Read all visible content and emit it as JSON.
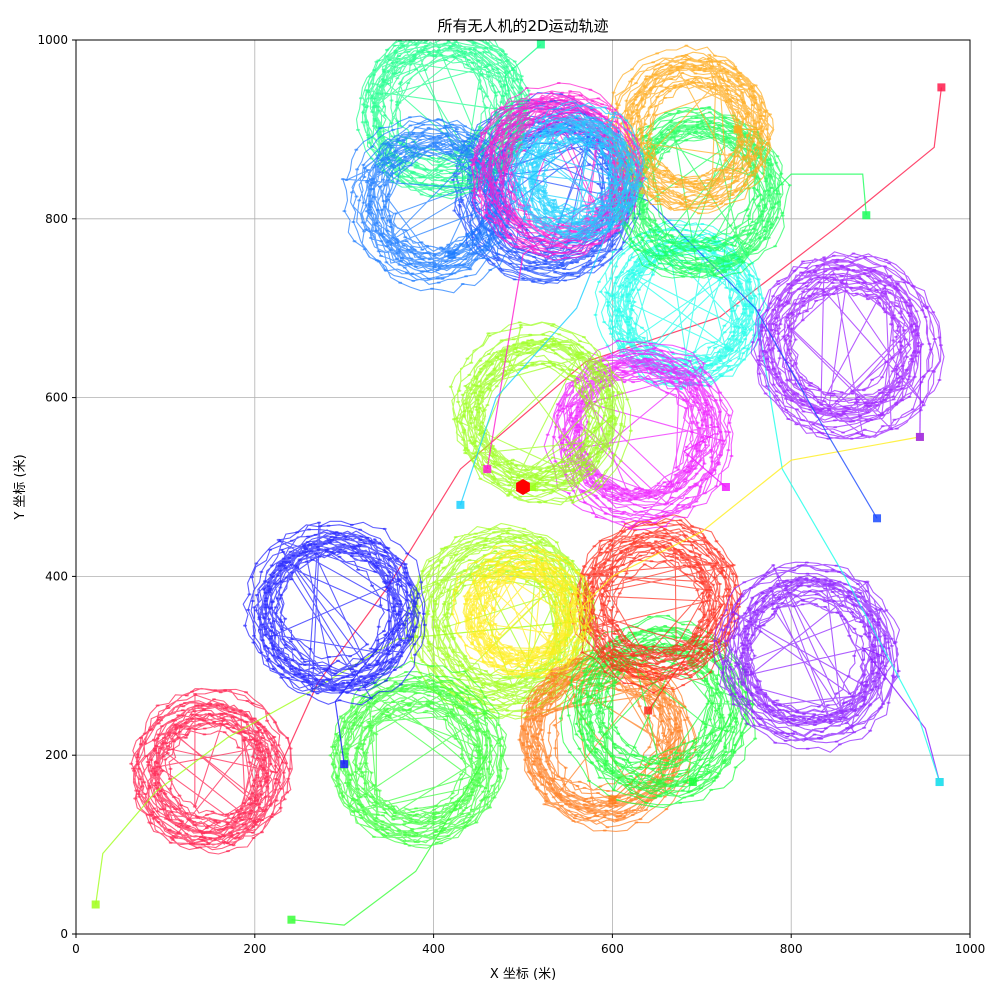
{
  "chart_data": {
    "type": "line",
    "title": "所有无人机的2D运动轨迹",
    "xlabel": "X 坐标 (米)",
    "ylabel": "Y 坐标 (米)",
    "xlim": [
      0,
      1000
    ],
    "ylim": [
      0,
      1000
    ],
    "xticks": [
      0,
      200,
      400,
      600,
      800,
      1000
    ],
    "yticks": [
      0,
      200,
      400,
      600,
      800,
      1000
    ],
    "grid": true,
    "legend": "none",
    "markers": "small dots on each trajectory; squares at start positions",
    "series": [
      {
        "color": "#ff1a4a",
        "start": [
          968,
          947
        ],
        "transit": [
          [
            960,
            880
          ],
          [
            850,
            790
          ],
          [
            720,
            690
          ],
          [
            570,
            640
          ],
          [
            430,
            520
          ],
          [
            350,
            390
          ],
          [
            270,
            280
          ]
        ],
        "center": [
          150,
          180
        ],
        "radius": 75
      },
      {
        "color": "#a0ff1a",
        "start": [
          22,
          33
        ],
        "transit": [
          [
            30,
            90
          ],
          [
            90,
            160
          ],
          [
            170,
            220
          ],
          [
            260,
            270
          ],
          [
            360,
            330
          ]
        ],
        "center": [
          480,
          350
        ],
        "radius": 85
      },
      {
        "color": "#38ff38",
        "start": [
          241,
          16
        ],
        "transit": [
          [
            300,
            10
          ],
          [
            380,
            70
          ]
        ],
        "center": [
          380,
          200
        ],
        "radius": 80
      },
      {
        "color": "#1a1aff",
        "start": [
          300,
          190
        ],
        "transit": [
          [
            290,
            260
          ]
        ],
        "center": [
          290,
          360
        ],
        "radius": 80
      },
      {
        "color": "#ff7a1a",
        "start": [
          600,
          150
        ],
        "transit": [],
        "center": [
          590,
          220
        ],
        "radius": 85
      },
      {
        "color": "#1aff3a",
        "start": [
          690,
          170
        ],
        "transit": [],
        "center": [
          650,
          250
        ],
        "radius": 85
      },
      {
        "color": "#ff2a1a",
        "start": [
          640,
          250
        ],
        "transit": [],
        "center": [
          650,
          370
        ],
        "radius": 75
      },
      {
        "color": "#8a1aff",
        "start": [
          966,
          170
        ],
        "transit": [
          [
            950,
            230
          ],
          [
            880,
            320
          ]
        ],
        "center": [
          820,
          310
        ],
        "radius": 85
      },
      {
        "color": "#1affea",
        "start": [
          966,
          170
        ],
        "transit": [
          [
            940,
            250
          ],
          [
            860,
            400
          ],
          [
            790,
            520
          ]
        ],
        "center": [
          680,
          700
        ],
        "radius": 80
      },
      {
        "color": "#ffee1a",
        "start": [
          944,
          556
        ],
        "transit": [
          [
            800,
            530
          ],
          [
            700,
            450
          ],
          [
            600,
            400
          ]
        ],
        "center": [
          500,
          360
        ],
        "radius": 60
      },
      {
        "color": "#9a1aff",
        "start": [
          944,
          556
        ],
        "transit": [],
        "center": [
          860,
          660
        ],
        "radius": 85
      },
      {
        "color": "#ee1aff",
        "start": [
          727,
          500
        ],
        "transit": [
          [
            680,
            540
          ]
        ],
        "center": [
          630,
          560
        ],
        "radius": 85
      },
      {
        "color": "#9aff1a",
        "start": [
          510,
          500
        ],
        "transit": [],
        "center": [
          520,
          580
        ],
        "radius": 80
      },
      {
        "color": "#1a4aff",
        "start": [
          896,
          465
        ],
        "transit": [
          [
            840,
            560
          ],
          [
            760,
            700
          ],
          [
            640,
            820
          ]
        ],
        "center": [
          530,
          830
        ],
        "radius": 85
      },
      {
        "color": "#1aff5a",
        "start": [
          884,
          804
        ],
        "transit": [
          [
            880,
            850
          ],
          [
            800,
            850
          ]
        ],
        "center": [
          700,
          830
        ],
        "radius": 80
      },
      {
        "color": "#ffaa1a",
        "start": [
          740,
          900
        ],
        "transit": [],
        "center": [
          690,
          900
        ],
        "radius": 75
      },
      {
        "color": "#1aff8a",
        "start": [
          520,
          995
        ],
        "transit": [
          [
            480,
            960
          ]
        ],
        "center": [
          410,
          920
        ],
        "radius": 80
      },
      {
        "color": "#1a7aff",
        "start": [
          420,
          760
        ],
        "transit": [],
        "center": [
          400,
          820
        ],
        "radius": 80
      },
      {
        "color": "#ff1ad0",
        "start": [
          460,
          520
        ],
        "transit": [
          [
            480,
            640
          ],
          [
            500,
            760
          ]
        ],
        "center": [
          540,
          850
        ],
        "radius": 80
      },
      {
        "color": "#1ad0ff",
        "start": [
          430,
          480
        ],
        "transit": [
          [
            470,
            600
          ],
          [
            560,
            700
          ]
        ],
        "center": [
          560,
          850
        ],
        "radius": 60
      }
    ],
    "center_marker": {
      "x": 500,
      "y": 500,
      "color": "#ff0000",
      "shape": "hexagon"
    }
  }
}
